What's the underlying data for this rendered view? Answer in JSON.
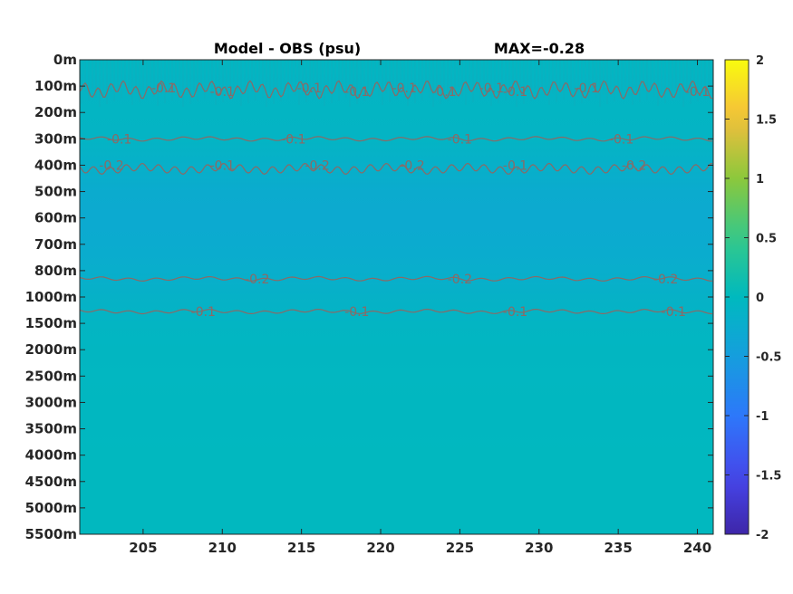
{
  "chart_data": {
    "type": "heatmap",
    "title": "Model - OBS (psu)",
    "subtitle": "MAX=-0.28",
    "xlabel": "",
    "ylabel": "",
    "x_range": [
      201,
      241
    ],
    "x_ticks": [
      205,
      210,
      215,
      220,
      225,
      230,
      235,
      240
    ],
    "x_tick_labels": [
      "205",
      "210",
      "215",
      "220",
      "225",
      "230",
      "235",
      "240"
    ],
    "y_tick_labels": [
      "0m",
      "100m",
      "200m",
      "300m",
      "400m",
      "500m",
      "600m",
      "700m",
      "800m",
      "1000m",
      "1500m",
      "2000m",
      "2500m",
      "3000m",
      "3500m",
      "4000m",
      "4500m",
      "5000m",
      "5500m"
    ],
    "colorbar": {
      "min": -2,
      "max": 2,
      "ticks": [
        2,
        1.5,
        1,
        0.5,
        0,
        -0.5,
        -1,
        -1.5,
        -2
      ],
      "tick_labels": [
        "2",
        "1.5",
        "1",
        "0.5",
        "0",
        "-0.5",
        "-1",
        "-1.5",
        "-2"
      ],
      "colormap": "parula"
    },
    "depth_profile": [
      {
        "depth_label": "0m",
        "value": -0.05
      },
      {
        "depth_label": "100m",
        "value": -0.1
      },
      {
        "depth_label": "200m",
        "value": -0.08
      },
      {
        "depth_label": "300m",
        "value": -0.1
      },
      {
        "depth_label": "400m",
        "value": -0.18
      },
      {
        "depth_label": "500m",
        "value": -0.26
      },
      {
        "depth_label": "600m",
        "value": -0.28
      },
      {
        "depth_label": "700m",
        "value": -0.27
      },
      {
        "depth_label": "800m",
        "value": -0.22
      },
      {
        "depth_label": "1000m",
        "value": -0.15
      },
      {
        "depth_label": "1500m",
        "value": -0.08
      },
      {
        "depth_label": "2000m",
        "value": -0.05
      },
      {
        "depth_label": "2500m",
        "value": -0.04
      },
      {
        "depth_label": "3000m",
        "value": -0.03
      },
      {
        "depth_label": "3500m",
        "value": -0.03
      },
      {
        "depth_label": "4000m",
        "value": -0.02
      },
      {
        "depth_label": "4500m",
        "value": -0.02
      },
      {
        "depth_label": "5000m",
        "value": -0.02
      },
      {
        "depth_label": "5500m",
        "value": -0.02
      }
    ],
    "contours": [
      {
        "level": -0.1,
        "depth_label": "100m",
        "labels": [
          {
            "text": "-0.1",
            "x": 206.3
          },
          {
            "text": "-0.1",
            "x": 210.0
          },
          {
            "text": "-0.1",
            "x": 215.5
          },
          {
            "text": "-0.1",
            "x": 218.5
          },
          {
            "text": "-0.1",
            "x": 221.5
          },
          {
            "text": "-0.1",
            "x": 224.0
          },
          {
            "text": "-0.1",
            "x": 227.0
          },
          {
            "text": "-0.1",
            "x": 228.5
          },
          {
            "text": "-0.1",
            "x": 233.0
          },
          {
            "text": "-0.1",
            "x": 240.0
          }
        ]
      },
      {
        "level": -0.1,
        "depth_label": "300m",
        "labels": [
          {
            "text": "-0.1",
            "x": 203.5
          },
          {
            "text": "-0.1",
            "x": 214.5
          },
          {
            "text": "-0.1",
            "x": 225.0
          },
          {
            "text": "-0.1",
            "x": 235.2
          }
        ]
      },
      {
        "level": -0.2,
        "depth_label": "400m",
        "labels": [
          {
            "text": "-0.2",
            "x": 203.0
          },
          {
            "text": "-0.1",
            "x": 210.0
          },
          {
            "text": "-0.2",
            "x": 216.0
          },
          {
            "text": "-0.2",
            "x": 222.0
          },
          {
            "text": "-0.1",
            "x": 228.5
          },
          {
            "text": "-0.2",
            "x": 236.0
          }
        ]
      },
      {
        "level": -0.2,
        "depth_label": "800m",
        "labels": [
          {
            "text": "-0.2",
            "x": 212.2
          },
          {
            "text": "-0.2",
            "x": 225.0
          },
          {
            "text": "-0.2",
            "x": 238.0
          }
        ]
      },
      {
        "level": -0.1,
        "depth_label": "1000m",
        "labels": [
          {
            "text": "-0.1",
            "x": 208.8
          },
          {
            "text": "-0.1",
            "x": 218.5
          },
          {
            "text": "-0.1",
            "x": 228.5
          },
          {
            "text": "-0.1",
            "x": 238.5
          }
        ]
      }
    ],
    "colors": {
      "contour": "#8a6a66",
      "axis": "#262626",
      "background": "#ffffff"
    },
    "grid": false
  }
}
